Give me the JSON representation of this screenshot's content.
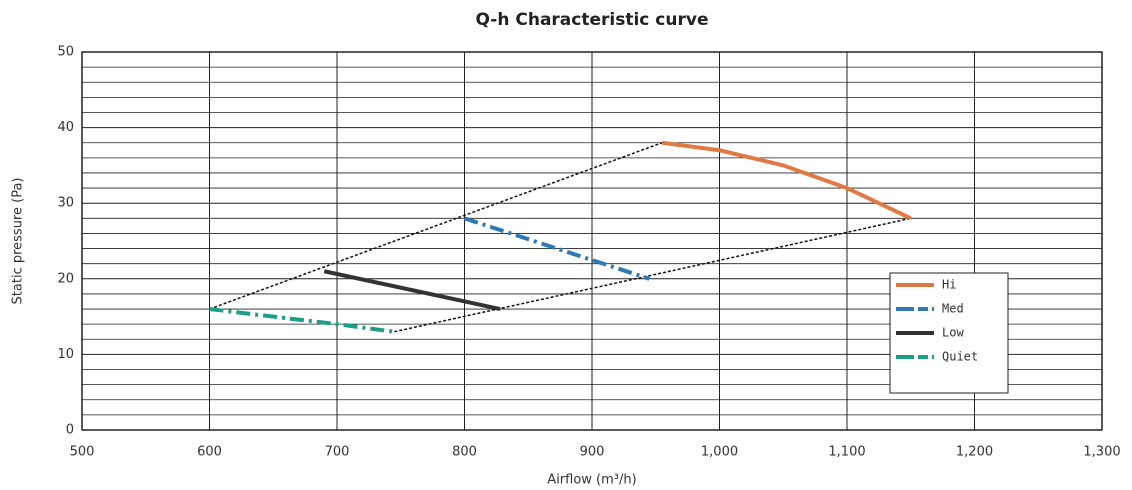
{
  "chart_data": {
    "type": "line",
    "title": "Q-h Characteristic curve",
    "x_label": "Airflow (m³/h)",
    "y_label": "Static pressure (Pa)",
    "xlim": [
      500,
      1300
    ],
    "xticks": [
      500,
      600,
      700,
      800,
      900,
      {
        "value": 1000,
        "label": "1,000"
      },
      {
        "value": 1100,
        "label": "1,100"
      },
      {
        "value": 1200,
        "label": "1,200"
      },
      {
        "value": 1300,
        "label": "1,300"
      }
    ],
    "ylim": [
      0,
      50
    ],
    "yticks": [
      0,
      10,
      20,
      30,
      40,
      50
    ],
    "ygrid": [
      2,
      4,
      6,
      8,
      12,
      14,
      16,
      18,
      22,
      24,
      26,
      28,
      32,
      34,
      36,
      38,
      42,
      44,
      46,
      48
    ],
    "grid": true,
    "legend": "right",
    "series": [
      {
        "name": "Hi",
        "color": "#e07a45",
        "style": "solid",
        "x": [
          955,
          1000,
          1050,
          1100,
          1150
        ],
        "values": [
          38,
          37,
          35,
          32,
          28
        ]
      },
      {
        "name": "Med",
        "color": "#2e7ab5",
        "style": "dashdot",
        "x": [
          800,
          945
        ],
        "values": [
          28,
          20
        ]
      },
      {
        "name": "Low",
        "color": "#333333",
        "style": "solid",
        "x": [
          690,
          828
        ],
        "values": [
          21,
          16
        ]
      },
      {
        "name": "Quiet",
        "color": "#1a9e88",
        "style": "dashdot",
        "x": [
          600,
          700,
          745
        ],
        "values": [
          16,
          14,
          13
        ]
      }
    ],
    "guides": [
      {
        "x": [
          600,
          955
        ],
        "values": [
          16,
          38
        ]
      },
      {
        "x": [
          745,
          1150
        ],
        "values": [
          13,
          28
        ]
      }
    ]
  }
}
